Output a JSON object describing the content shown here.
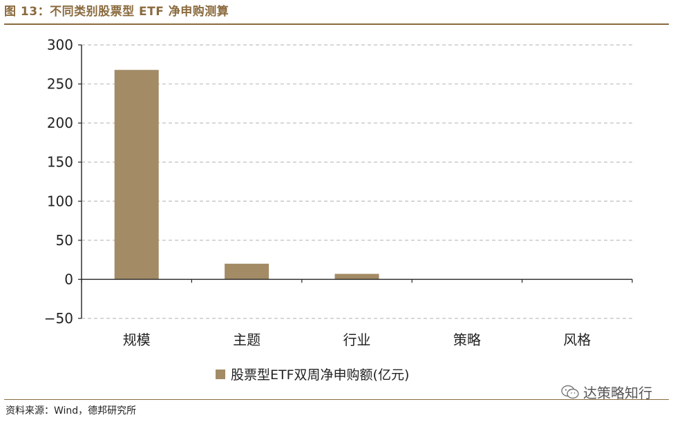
{
  "figure": {
    "title": "图 13：不同类别股票型 ETF 净申购测算",
    "source": "资料来源：Wind，德邦研究所"
  },
  "watermark": {
    "text": "达策略知行",
    "icon": "wechat-icon"
  },
  "colors": {
    "bar": "#a38b66",
    "accent": "#8a6a3e",
    "grid": "#bfbfbf"
  },
  "chart_data": {
    "type": "bar",
    "categories": [
      "规模",
      "主题",
      "行业",
      "策略",
      "风格"
    ],
    "series": [
      {
        "name": "股票型ETF双周净申购额(亿元)",
        "values": [
          268,
          20,
          7,
          0,
          0
        ]
      }
    ],
    "ylim": [
      -50,
      300
    ],
    "yticks": [
      -50,
      0,
      50,
      100,
      150,
      200,
      250,
      300
    ],
    "grid": true,
    "legend": "bottom"
  }
}
